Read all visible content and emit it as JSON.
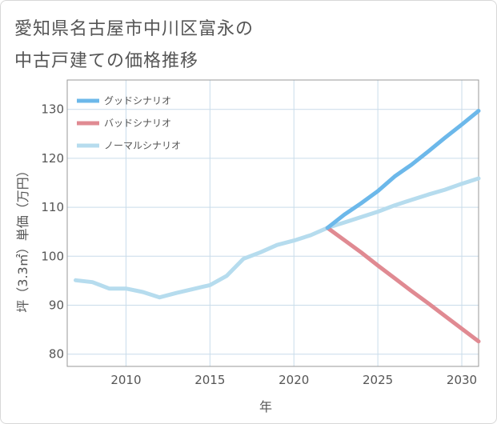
{
  "title": {
    "line1": "愛知県名古屋市中川区富永の",
    "line2": "中古戸建ての価格推移"
  },
  "chart_data": {
    "type": "line",
    "xlabel": "年",
    "ylabel": "坪（3.3㎡）単価（万円）",
    "xlim": [
      2006.5,
      2031
    ],
    "ylim": [
      77.5,
      136
    ],
    "xticks": [
      2010,
      2015,
      2020,
      2025,
      2030
    ],
    "yticks": [
      80,
      90,
      100,
      110,
      120,
      130
    ],
    "grid": true,
    "legend_position": "top-left",
    "series": [
      {
        "name": "グッドシナリオ",
        "color": "#6cb8ea",
        "x": [
          2022,
          2023,
          2024,
          2025,
          2026,
          2027,
          2028,
          2029,
          2030,
          2031
        ],
        "values": [
          105.8,
          108.5,
          110.8,
          113.3,
          116.3,
          118.7,
          121.4,
          124.2,
          126.9,
          129.7
        ]
      },
      {
        "name": "バッドシナリオ",
        "color": "#e08a92",
        "x": [
          2022,
          2023,
          2024,
          2025,
          2026,
          2027,
          2028,
          2029,
          2030,
          2031
        ],
        "values": [
          105.8,
          103.3,
          100.8,
          98.1,
          95.5,
          92.9,
          90.4,
          87.8,
          85.2,
          82.6
        ]
      },
      {
        "name": "ノーマルシナリオ",
        "color": "#b6dcee",
        "x": [
          2007,
          2008,
          2009,
          2010,
          2011,
          2012,
          2013,
          2014,
          2015,
          2016,
          2017,
          2018,
          2019,
          2020,
          2021,
          2022,
          2023,
          2024,
          2025,
          2026,
          2027,
          2028,
          2029,
          2030,
          2031
        ],
        "values": [
          95.1,
          94.7,
          93.4,
          93.4,
          92.7,
          91.6,
          92.5,
          93.3,
          94.1,
          96.0,
          99.5,
          100.8,
          102.3,
          103.2,
          104.3,
          105.8,
          106.9,
          108.0,
          109.1,
          110.4,
          111.5,
          112.6,
          113.6,
          114.8,
          115.9
        ]
      }
    ]
  }
}
